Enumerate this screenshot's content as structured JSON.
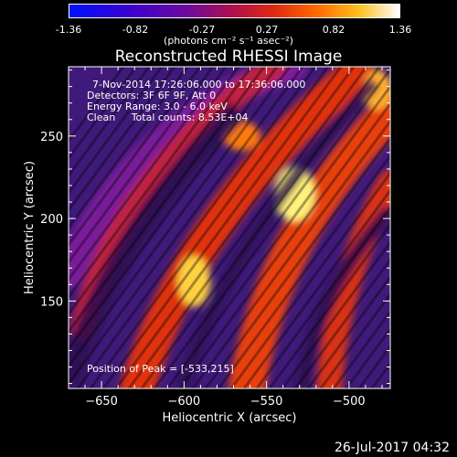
{
  "colorbar": {
    "ticks": [
      "-1.36",
      "-0.82",
      "-0.27",
      "0.27",
      "0.82",
      "1.36"
    ],
    "units": "(photons cm⁻² s⁻¹ asec⁻²)",
    "range": [
      -1.36,
      1.36
    ]
  },
  "info": {
    "time_range": "7-Nov-2014 17:26:06.000 to 17:36:06.000",
    "detectors": "Detectors: 3F 6F 9F, Att 0",
    "energy": "Energy Range: 3.0 - 6.0 keV",
    "clean": "Clean     Total counts: 8.53E+04",
    "peak": "Position of Peak = [-533,215]"
  },
  "footer": {
    "timestamp": "26-Jul-2017 04:32"
  },
  "colors": {
    "background": "#000000",
    "text": "#ffffff"
  },
  "chart_data": {
    "type": "heatmap",
    "title": "Reconstructed RHESSI Image",
    "xlabel": "Heliocentric X (arcsec)",
    "ylabel": "Heliocentric Y (arcsec)",
    "xlim": [
      -670,
      -475
    ],
    "ylim": [
      97,
      292
    ],
    "xticks": [
      -650,
      -600,
      -550,
      -500
    ],
    "yticks": [
      150,
      200,
      250
    ],
    "peak": [
      -533,
      215
    ],
    "colormap": "rhessi-blue-purple-red-yellow-white"
  }
}
